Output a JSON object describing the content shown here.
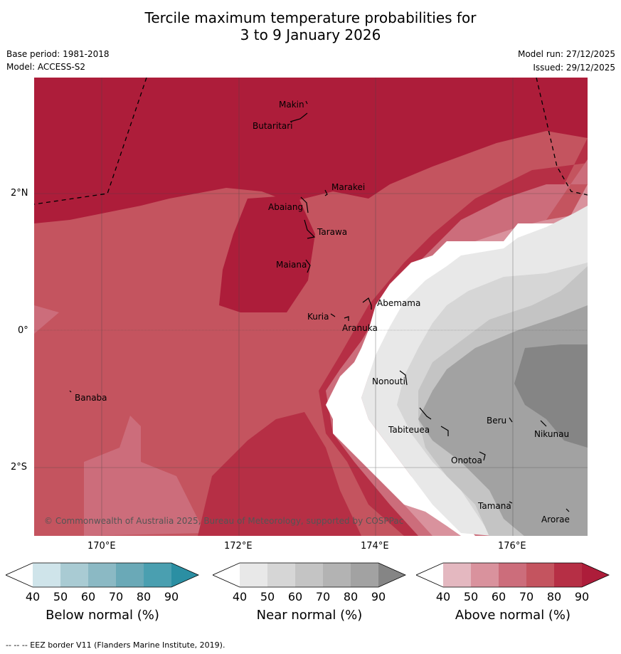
{
  "header": {
    "title_line1": "Tercile maximum temperature probabilities for",
    "title_line2": "3 to 9 January 2026",
    "base_period": "Base period: 1981-2018",
    "model": "Model: ACCESS-S2",
    "model_run": "Model run: 27/12/2025",
    "issued": "Issued: 29/12/2025"
  },
  "map": {
    "lat_labels": [
      "2°N",
      "0°",
      "2°S"
    ],
    "lon_labels": [
      "170°E",
      "172°E",
      "174°E",
      "176°E"
    ],
    "places": {
      "makin": "Makin",
      "butaritari": "Butaritari",
      "marakei": "Marakei",
      "abaiang": "Abaiang",
      "tarawa": "Tarawa",
      "maiana": "Maiana",
      "abemama": "Abemama",
      "kuria": "Kuria",
      "aranuka": "Aranuka",
      "nonouti": "Nonouti",
      "banaba": "Banaba",
      "beru": "Beru",
      "nikunau": "Nikunau",
      "tabiteuea": "Tabiteuea",
      "onotoa": "Onotoa",
      "tamana": "Tamana",
      "arorae": "Arorae"
    },
    "copyright": "© Commonwealth of Australia 2025, Bureau of Meteorology, supported by COSPPac"
  },
  "legends": [
    {
      "title": "Below normal (%)",
      "ticks": [
        "40",
        "50",
        "60",
        "70",
        "80",
        "90"
      ],
      "colors": [
        "#ffffff",
        "#cfe4ea",
        "#a9cbd3",
        "#8bb9c4",
        "#6aa9b7",
        "#4a9fb0",
        "#2b8fa3"
      ]
    },
    {
      "title": "Near normal (%)",
      "ticks": [
        "40",
        "50",
        "60",
        "70",
        "80",
        "90"
      ],
      "colors": [
        "#ffffff",
        "#e8e8e8",
        "#d6d6d6",
        "#c4c4c4",
        "#b3b3b3",
        "#a2a2a2",
        "#858585"
      ]
    },
    {
      "title": "Above normal (%)",
      "ticks": [
        "40",
        "50",
        "60",
        "70",
        "80",
        "90"
      ],
      "colors": [
        "#ffffff",
        "#e4b8c0",
        "#d9929d",
        "#cc6d7b",
        "#c4545f",
        "#b62f45",
        "#ad1d3a"
      ]
    }
  ],
  "footer": "--  --  -- EEZ border V11 (Flanders Marine Institute, 2019)."
}
